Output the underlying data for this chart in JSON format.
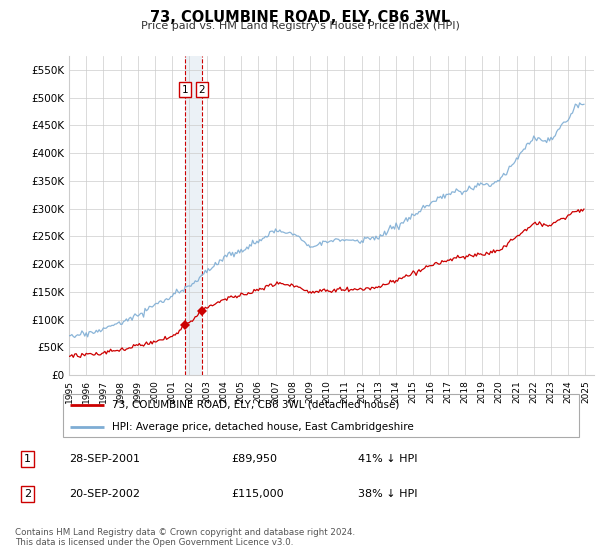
{
  "title": "73, COLUMBINE ROAD, ELY, CB6 3WL",
  "subtitle": "Price paid vs. HM Land Registry's House Price Index (HPI)",
  "hpi_color": "#7eadd4",
  "property_color": "#cc0000",
  "marker_color": "#cc0000",
  "vline_color": "#cc0000",
  "shade_color": "#c8d8e8",
  "grid_color": "#cccccc",
  "background_color": "#ffffff",
  "ylim": [
    0,
    575000
  ],
  "yticks": [
    0,
    50000,
    100000,
    150000,
    200000,
    250000,
    300000,
    350000,
    400000,
    450000,
    500000,
    550000
  ],
  "ytick_labels": [
    "£0",
    "£50K",
    "£100K",
    "£150K",
    "£200K",
    "£250K",
    "£300K",
    "£350K",
    "£400K",
    "£450K",
    "£500K",
    "£550K"
  ],
  "xlim_start": 1995.0,
  "xlim_end": 2025.5,
  "sale1_date": 2001.74,
  "sale1_price": 89950,
  "sale2_date": 2002.72,
  "sale2_price": 115000,
  "legend_line1": "73, COLUMBINE ROAD, ELY, CB6 3WL (detached house)",
  "legend_line2": "HPI: Average price, detached house, East Cambridgeshire",
  "table_row1_num": "1",
  "table_row1_date": "28-SEP-2001",
  "table_row1_price": "£89,950",
  "table_row1_hpi": "41% ↓ HPI",
  "table_row2_num": "2",
  "table_row2_date": "20-SEP-2002",
  "table_row2_price": "£115,000",
  "table_row2_hpi": "38% ↓ HPI",
  "footer": "Contains HM Land Registry data © Crown copyright and database right 2024.\nThis data is licensed under the Open Government Licence v3.0."
}
